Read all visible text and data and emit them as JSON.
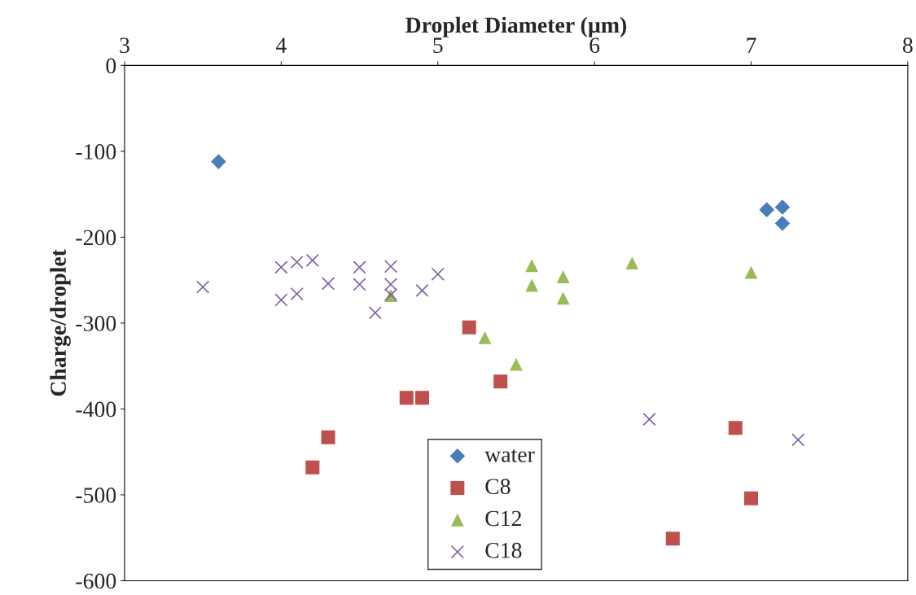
{
  "chart_data": {
    "type": "scatter",
    "xlabel": "Droplet Diameter (µm)",
    "ylabel": "Charge/droplet",
    "xlim": [
      3,
      8
    ],
    "xticks": [
      3,
      4,
      5,
      6,
      7,
      8
    ],
    "ylim": [
      -600,
      0
    ],
    "yticks": [
      -600,
      -500,
      -400,
      -300,
      -200,
      -100,
      0
    ],
    "grid": false,
    "legend": "bottom",
    "series": [
      {
        "name": "water",
        "color": "#4a7ebb",
        "marker": "diamond",
        "x": [
          3.6,
          7.1,
          7.2,
          7.2
        ],
        "values": [
          -112,
          -168,
          -165,
          -184
        ]
      },
      {
        "name": "C8",
        "color": "#c0504d",
        "marker": "square",
        "x": [
          4.2,
          4.3,
          4.8,
          4.9,
          5.2,
          5.4,
          6.5,
          6.9,
          7.0
        ],
        "values": [
          -468,
          -433,
          -387,
          -387,
          -305,
          -368,
          -551,
          -422,
          -504
        ]
      },
      {
        "name": "C12",
        "color": "#9bbb59",
        "marker": "triangle",
        "x": [
          4.7,
          5.3,
          5.5,
          5.6,
          5.6,
          5.8,
          5.8,
          6.24,
          7.0
        ],
        "values": [
          -268,
          -317,
          -348,
          -233,
          -256,
          -246,
          -271,
          -230,
          -241
        ]
      },
      {
        "name": "C18",
        "color": "#8064a2",
        "marker": "cross",
        "x": [
          3.5,
          4.0,
          4.0,
          4.1,
          4.1,
          4.2,
          4.3,
          4.5,
          4.5,
          4.7,
          4.7,
          4.7,
          4.6,
          4.9,
          5.0,
          6.35,
          7.3
        ],
        "values": [
          -258,
          -235,
          -273,
          -229,
          -266,
          -227,
          -254,
          -235,
          -255,
          -234,
          -255,
          -267,
          -288,
          -262,
          -243,
          -412,
          -436
        ]
      }
    ]
  }
}
